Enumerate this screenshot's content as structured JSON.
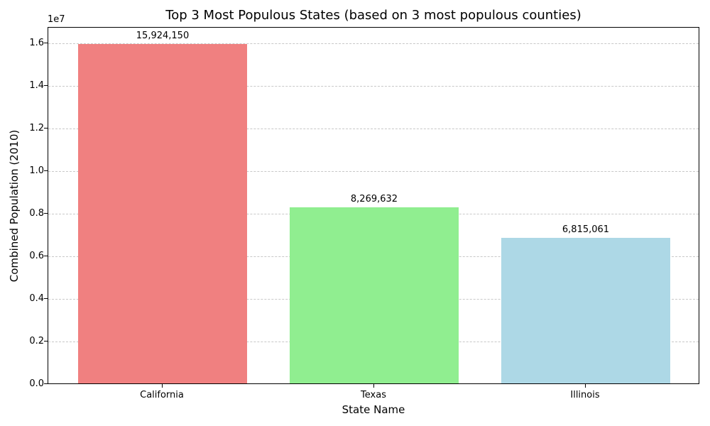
{
  "chart_data": {
    "type": "bar",
    "title": "Top 3 Most Populous States (based on 3 most populous counties)",
    "xlabel": "State Name",
    "ylabel": "Combined Population (2010)",
    "y_offset_label": "1e7",
    "categories": [
      "California",
      "Texas",
      "Illinois"
    ],
    "values": [
      15924150,
      8269632,
      6815061
    ],
    "value_labels": [
      "15,924,150",
      "8,269,632",
      "6,815,061"
    ],
    "colors": [
      "#f08080",
      "#90ee90",
      "#add8e6"
    ],
    "ylim": [
      0,
      16760000
    ],
    "yticks": [
      0,
      2000000,
      4000000,
      6000000,
      8000000,
      10000000,
      12000000,
      14000000,
      16000000
    ],
    "ytick_labels": [
      "0.0",
      "0.2",
      "0.4",
      "0.6",
      "0.8",
      "1.0",
      "1.2",
      "1.4",
      "1.6"
    ],
    "grid": "y-dashed",
    "legend": null
  }
}
